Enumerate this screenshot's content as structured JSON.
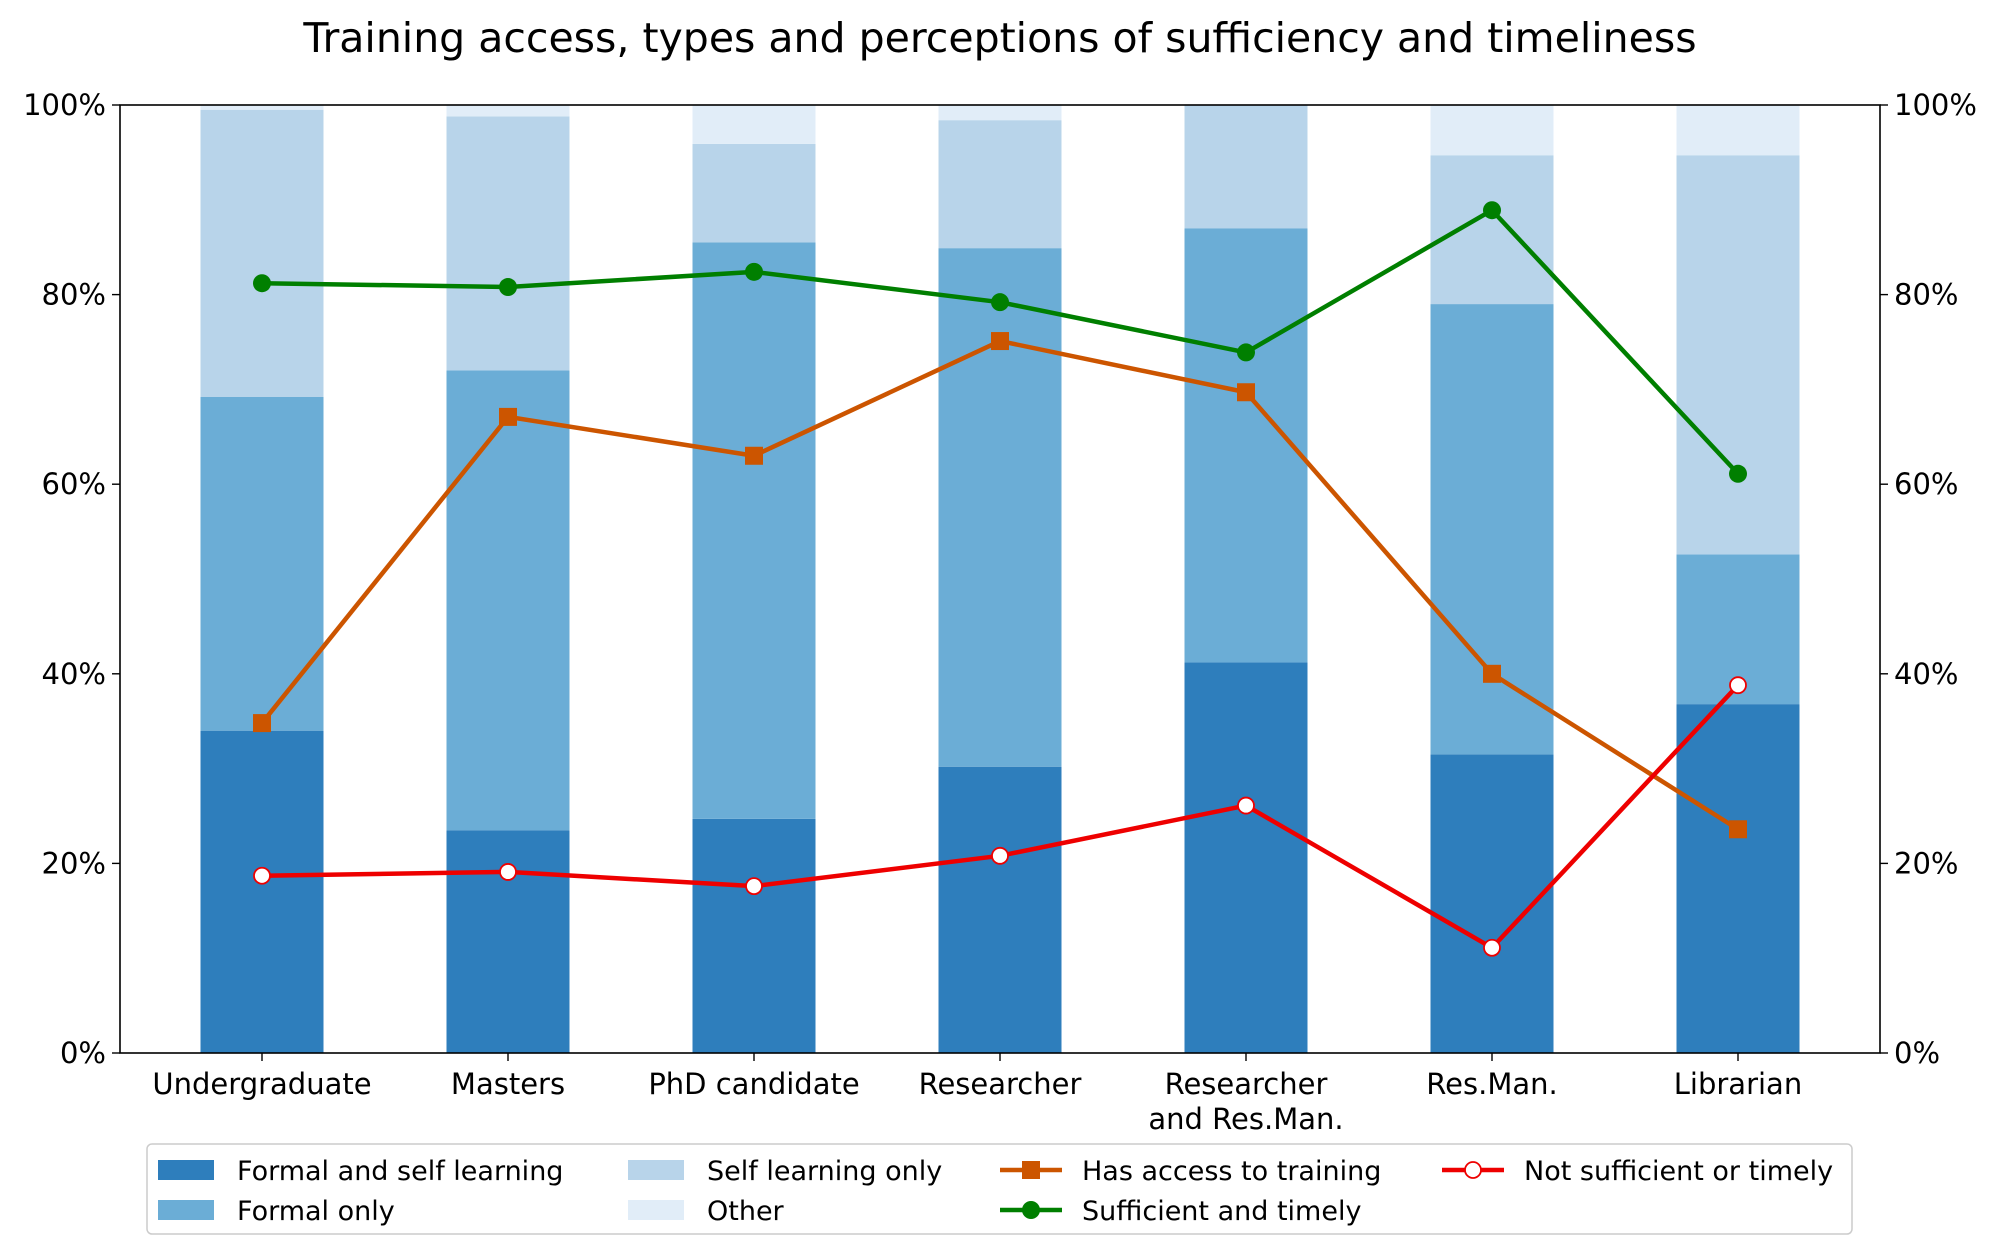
{
  "chart_data": {
    "type": "bar",
    "subtype": "stacked-bar-with-lines",
    "title": "Training access, types and perceptions of sufficiency and timeliness",
    "xlabel": "",
    "ylabel": "",
    "ylim": [
      0,
      100
    ],
    "y_tick_labels": [
      "0%",
      "20%",
      "40%",
      "60%",
      "80%",
      "100%"
    ],
    "y_ticks": [
      0,
      20,
      40,
      60,
      80,
      100
    ],
    "secondary_y_tick_labels": [
      "0%",
      "20%",
      "40%",
      "60%",
      "80%",
      "100%"
    ],
    "grid": false,
    "legend_position": "bottom",
    "categories": [
      [
        "Undergraduate"
      ],
      [
        "Masters"
      ],
      [
        "PhD candidate"
      ],
      [
        "Researcher"
      ],
      [
        "Researcher",
        "and Res.Man."
      ],
      [
        "Res.Man."
      ],
      [
        "Librarian"
      ]
    ],
    "bar_series": [
      {
        "name": "Formal and self learning",
        "color": "#2e7ebc",
        "values": [
          34.0,
          23.5,
          24.7,
          30.2,
          41.2,
          31.5,
          36.8
        ]
      },
      {
        "name": "Formal only",
        "color": "#6badd6",
        "values": [
          35.2,
          48.5,
          60.8,
          54.7,
          45.8,
          47.5,
          15.8
        ]
      },
      {
        "name": "Self learning only",
        "color": "#b8d4ea",
        "values": [
          30.3,
          26.8,
          10.4,
          13.5,
          13.0,
          15.7,
          42.1
        ]
      },
      {
        "name": "Other",
        "color": "#e1edf8",
        "values": [
          0.5,
          1.2,
          4.1,
          1.6,
          0.0,
          5.3,
          5.3
        ]
      }
    ],
    "line_series": [
      {
        "name": "Has access to training",
        "color": "#cc5500",
        "marker": "square",
        "values": [
          34.8,
          67.1,
          63.0,
          75.1,
          69.7,
          40.0,
          23.6
        ]
      },
      {
        "name": "Sufficient and timely",
        "color": "#007f00",
        "marker": "circle",
        "values": [
          81.2,
          80.8,
          82.4,
          79.2,
          73.9,
          88.9,
          61.1
        ]
      },
      {
        "name": "Not sufficient or timely",
        "color": "#ee0000",
        "marker": "open-circle",
        "values": [
          18.7,
          19.1,
          17.6,
          20.8,
          26.1,
          11.1,
          38.8
        ]
      }
    ],
    "legend": [
      {
        "label": "Formal and self learning",
        "kind": "patch",
        "series": "bar",
        "index": 0
      },
      {
        "label": "Formal only",
        "kind": "patch",
        "series": "bar",
        "index": 1
      },
      {
        "label": "Self learning only",
        "kind": "patch",
        "series": "bar",
        "index": 2
      },
      {
        "label": "Other",
        "kind": "patch",
        "series": "bar",
        "index": 3
      },
      {
        "label": "Has access to training",
        "kind": "line",
        "series": "line",
        "index": 0
      },
      {
        "label": "Sufficient and timely",
        "kind": "line",
        "series": "line",
        "index": 1
      },
      {
        "label": "Not sufficient or timely",
        "kind": "line",
        "series": "line",
        "index": 2
      }
    ]
  }
}
